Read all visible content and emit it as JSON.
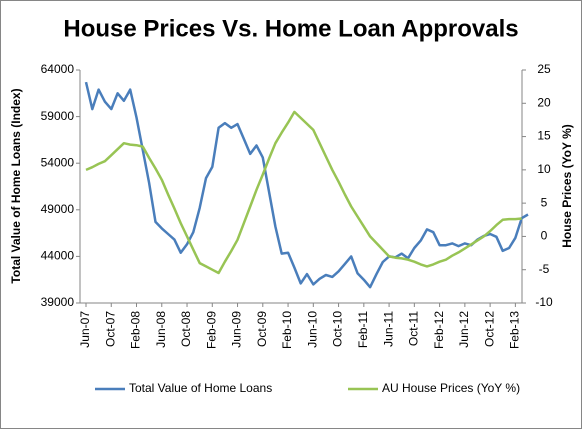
{
  "chart_data": {
    "type": "line",
    "title": "House Prices Vs. Home Loan Approvals",
    "y_label": "Total Value of Home Loans (Index)",
    "y2_label": "House Prices (YoY %)",
    "categories": [
      "Jun-07",
      null,
      null,
      null,
      "Oct-07",
      null,
      null,
      null,
      "Feb-08",
      null,
      null,
      null,
      "Jun-08",
      null,
      null,
      null,
      "Oct-08",
      null,
      null,
      null,
      "Feb-09",
      null,
      null,
      null,
      "Jun-09",
      null,
      null,
      null,
      "Oct-09",
      null,
      null,
      null,
      "Feb-10",
      null,
      null,
      null,
      "Jun-10",
      null,
      null,
      null,
      "Oct-10",
      null,
      null,
      null,
      "Feb-11",
      null,
      null,
      null,
      "Jun-11",
      null,
      null,
      null,
      "Oct-11",
      null,
      null,
      null,
      "Feb-12",
      null,
      null,
      null,
      "Jun-12",
      null,
      null,
      null,
      "Oct-12",
      null,
      null,
      null,
      "Feb-13",
      null,
      null
    ],
    "series": [
      {
        "name": "Total Value of Home Loans",
        "color": "#4a7ebb",
        "axis": "y",
        "values": [
          62700,
          59800,
          61900,
          60600,
          59800,
          61500,
          60700,
          61900,
          58900,
          55400,
          51900,
          47700,
          47000,
          46400,
          45800,
          44400,
          45300,
          46600,
          49200,
          52400,
          53600,
          57800,
          58300,
          57800,
          58200,
          56600,
          55000,
          55900,
          54600,
          50900,
          47200,
          44300,
          44400,
          42800,
          41100,
          42100,
          41000,
          41600,
          42000,
          41800,
          42400,
          43200,
          44000,
          42200,
          41500,
          40700,
          42100,
          43400,
          44000,
          43900,
          44300,
          43800,
          44900,
          45700,
          46900,
          46600,
          45200,
          45200,
          45400,
          45100,
          45400,
          45200,
          45800,
          46200,
          46400,
          46100,
          44600,
          44900,
          46000,
          48100,
          48500
        ]
      },
      {
        "name": "AU House Prices (YoY %)",
        "color": "#98c454",
        "axis": "y2",
        "values": [
          10,
          10.4,
          10.9,
          11.3,
          12.2,
          13.1,
          14,
          13.8,
          13.7,
          13.5,
          11.8,
          10.2,
          8.5,
          6.3,
          4.2,
          2,
          0,
          -2,
          -4,
          -4.5,
          -5,
          -5.5,
          -3.8,
          -2.2,
          -0.5,
          2,
          4.5,
          7,
          9.3,
          11.7,
          14,
          15.6,
          17.1,
          18.7,
          17.8,
          16.9,
          16,
          14,
          12,
          10,
          8.2,
          6.3,
          4.5,
          3,
          1.5,
          0,
          -1,
          -2,
          -3,
          -3.2,
          -3.3,
          -3.5,
          -3.8,
          -4.2,
          -4.5,
          -4.2,
          -3.8,
          -3.5,
          -2.9,
          -2.4,
          -1.8,
          -1.2,
          -0.6,
          0,
          0.8,
          1.7,
          2.5,
          2.6,
          2.6,
          2.7,
          null
        ]
      }
    ],
    "ylim": [
      39000,
      64000
    ],
    "yticks": [
      39000,
      44000,
      49000,
      54000,
      59000,
      64000
    ],
    "y2lim": [
      -10,
      25
    ],
    "y2ticks": [
      -10,
      -5,
      0,
      5,
      10,
      15,
      20,
      25
    ],
    "grid": false,
    "legend": "bottom"
  }
}
